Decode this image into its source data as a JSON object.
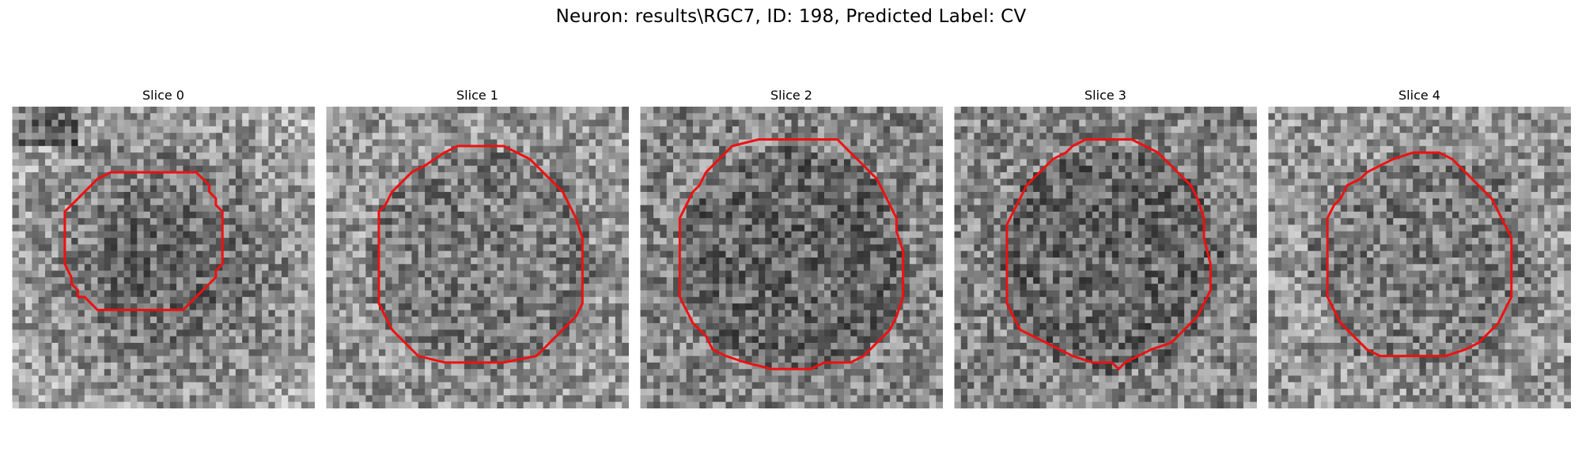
{
  "figure": {
    "title": "Neuron: results\\RGC7, ID: 198, Predicted Label: CV"
  },
  "colors": {
    "contour": "#ee1111",
    "background": "#ffffff"
  },
  "slices": [
    {
      "title": "Slice 0",
      "contour": [
        [
          15,
          10
        ],
        [
          28,
          10
        ],
        [
          30,
          12
        ],
        [
          30,
          13
        ],
        [
          31,
          14
        ],
        [
          31,
          15
        ],
        [
          32,
          16
        ],
        [
          32,
          20
        ],
        [
          32,
          24
        ],
        [
          31,
          25
        ],
        [
          31,
          26
        ],
        [
          30,
          27
        ],
        [
          29,
          28
        ],
        [
          28,
          29
        ],
        [
          26,
          31
        ],
        [
          21,
          31
        ],
        [
          13,
          31
        ],
        [
          12,
          30
        ],
        [
          11,
          29
        ],
        [
          10,
          29
        ],
        [
          10,
          28
        ],
        [
          9,
          27
        ],
        [
          9,
          26
        ],
        [
          8,
          24
        ],
        [
          8,
          20
        ],
        [
          8,
          16
        ],
        [
          9,
          15
        ],
        [
          10,
          14
        ],
        [
          12,
          12
        ],
        [
          13,
          11
        ]
      ],
      "tone": "bright-edges"
    },
    {
      "title": "Slice 1",
      "contour": [
        [
          20,
          6
        ],
        [
          27,
          6
        ],
        [
          29,
          7
        ],
        [
          31,
          8
        ],
        [
          32,
          9
        ],
        [
          33,
          10
        ],
        [
          34,
          11
        ],
        [
          35,
          12
        ],
        [
          36,
          13
        ],
        [
          37,
          15
        ],
        [
          38,
          17
        ],
        [
          39,
          20
        ],
        [
          39,
          25
        ],
        [
          39,
          30
        ],
        [
          38,
          32
        ],
        [
          36,
          34
        ],
        [
          35,
          35
        ],
        [
          34,
          36
        ],
        [
          33,
          37
        ],
        [
          32,
          38
        ],
        [
          27,
          39
        ],
        [
          22,
          39
        ],
        [
          18,
          39
        ],
        [
          14,
          38
        ],
        [
          13,
          37
        ],
        [
          12,
          36
        ],
        [
          11,
          35
        ],
        [
          10,
          34
        ],
        [
          9,
          32
        ],
        [
          8,
          30
        ],
        [
          8,
          24
        ],
        [
          8,
          19
        ],
        [
          8,
          16
        ],
        [
          9,
          15
        ],
        [
          10,
          13
        ],
        [
          11,
          12
        ],
        [
          12,
          11
        ],
        [
          13,
          10
        ],
        [
          15,
          9
        ],
        [
          18,
          7
        ]
      ],
      "tone": "mid"
    },
    {
      "title": "Slice 2",
      "contour": [
        [
          18,
          5
        ],
        [
          25,
          5
        ],
        [
          30,
          5
        ],
        [
          31,
          6
        ],
        [
          32,
          7
        ],
        [
          33,
          8
        ],
        [
          34,
          9
        ],
        [
          35,
          10
        ],
        [
          36,
          11
        ],
        [
          37,
          13
        ],
        [
          38,
          15
        ],
        [
          39,
          17
        ],
        [
          39,
          19
        ],
        [
          40,
          22
        ],
        [
          40,
          25
        ],
        [
          40,
          29
        ],
        [
          39,
          32
        ],
        [
          38,
          34
        ],
        [
          37,
          35
        ],
        [
          36,
          36
        ],
        [
          35,
          37
        ],
        [
          34,
          38
        ],
        [
          32,
          39
        ],
        [
          30,
          39
        ],
        [
          28,
          39
        ],
        [
          26,
          40
        ],
        [
          23,
          40
        ],
        [
          20,
          40
        ],
        [
          16,
          39
        ],
        [
          13,
          38
        ],
        [
          11,
          37
        ],
        [
          10,
          35
        ],
        [
          9,
          34
        ],
        [
          8,
          33
        ],
        [
          7,
          31
        ],
        [
          6,
          29
        ],
        [
          6,
          24
        ],
        [
          6,
          20
        ],
        [
          6,
          17
        ],
        [
          7,
          15
        ],
        [
          8,
          13
        ],
        [
          9,
          12
        ],
        [
          10,
          10
        ],
        [
          11,
          9
        ],
        [
          12,
          8
        ],
        [
          14,
          6
        ]
      ],
      "tone": "dark"
    },
    {
      "title": "Slice 3",
      "contour": [
        [
          20,
          5
        ],
        [
          27,
          5
        ],
        [
          29,
          6
        ],
        [
          31,
          7
        ],
        [
          32,
          8
        ],
        [
          33,
          9
        ],
        [
          34,
          10
        ],
        [
          35,
          11
        ],
        [
          36,
          12
        ],
        [
          37,
          14
        ],
        [
          38,
          17
        ],
        [
          38,
          20
        ],
        [
          39,
          24
        ],
        [
          39,
          28
        ],
        [
          38,
          30
        ],
        [
          37,
          32
        ],
        [
          36,
          33
        ],
        [
          35,
          34
        ],
        [
          34,
          35
        ],
        [
          33,
          36
        ],
        [
          30,
          37
        ],
        [
          28,
          38
        ],
        [
          26,
          39
        ],
        [
          25,
          40
        ],
        [
          24,
          39
        ],
        [
          21,
          39
        ],
        [
          18,
          38
        ],
        [
          16,
          37
        ],
        [
          14,
          36
        ],
        [
          12,
          35
        ],
        [
          10,
          34
        ],
        [
          9,
          32
        ],
        [
          8,
          30
        ],
        [
          8,
          26
        ],
        [
          8,
          22
        ],
        [
          8,
          18
        ],
        [
          9,
          16
        ],
        [
          10,
          14
        ],
        [
          11,
          12
        ],
        [
          12,
          11
        ],
        [
          13,
          10
        ],
        [
          15,
          8
        ],
        [
          17,
          7
        ],
        [
          18,
          6
        ]
      ],
      "tone": "dark"
    },
    {
      "title": "Slice 4",
      "contour": [
        [
          22,
          7
        ],
        [
          26,
          7
        ],
        [
          28,
          8
        ],
        [
          29,
          9
        ],
        [
          30,
          10
        ],
        [
          31,
          11
        ],
        [
          32,
          12
        ],
        [
          33,
          13
        ],
        [
          34,
          14
        ],
        [
          35,
          16
        ],
        [
          36,
          18
        ],
        [
          37,
          20
        ],
        [
          37,
          23
        ],
        [
          37,
          29
        ],
        [
          36,
          31
        ],
        [
          35,
          33
        ],
        [
          34,
          34
        ],
        [
          33,
          35
        ],
        [
          32,
          36
        ],
        [
          30,
          37
        ],
        [
          27,
          38
        ],
        [
          24,
          38
        ],
        [
          20,
          38
        ],
        [
          17,
          38
        ],
        [
          15,
          37
        ],
        [
          14,
          36
        ],
        [
          13,
          35
        ],
        [
          12,
          34
        ],
        [
          11,
          33
        ],
        [
          10,
          31
        ],
        [
          9,
          29
        ],
        [
          9,
          24
        ],
        [
          9,
          20
        ],
        [
          9,
          17
        ],
        [
          10,
          15
        ],
        [
          11,
          14
        ],
        [
          12,
          12
        ],
        [
          14,
          11
        ],
        [
          15,
          10
        ],
        [
          17,
          9
        ],
        [
          19,
          8
        ]
      ],
      "tone": "mid"
    }
  ]
}
